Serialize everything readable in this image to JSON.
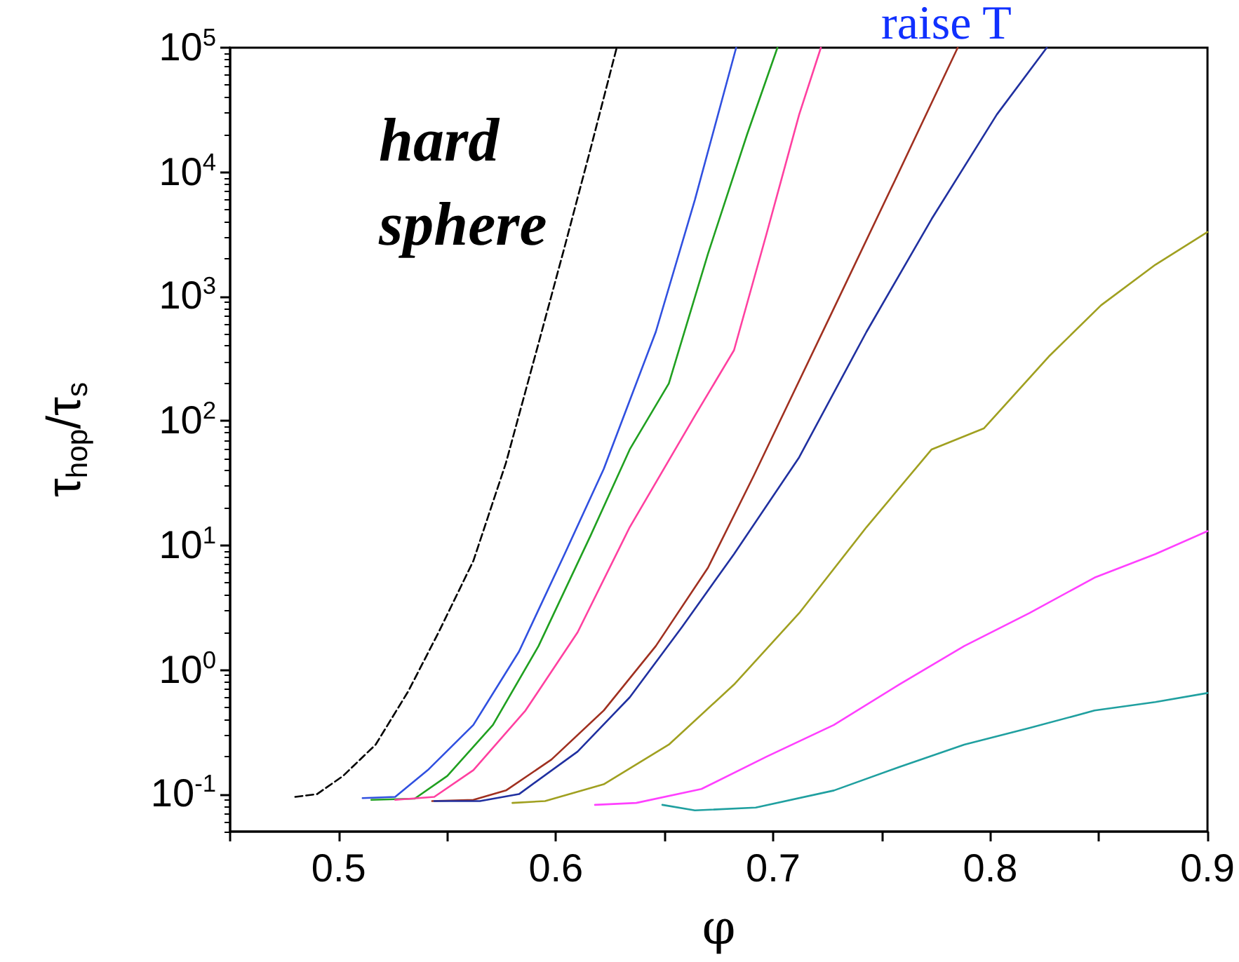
{
  "chart_data": {
    "type": "line",
    "xlabel": "φ",
    "ylabel": "τ$_{hop}$/τ$_{s}$",
    "log": "y",
    "marker": "none",
    "annotations": [
      "hard sphere",
      "raise T"
    ],
    "xlim": [
      0.45,
      0.9
    ],
    "xticks": [
      {
        "value": 0.45,
        "label": null
      },
      0.5,
      {
        "value": 0.55,
        "label": null
      },
      0.6,
      {
        "value": 0.65,
        "label": null
      },
      0.7,
      {
        "value": 0.75,
        "label": null
      },
      0.8,
      {
        "value": 0.85,
        "label": null
      },
      0.9
    ],
    "ylim": [
      0.05,
      100000
    ],
    "yticks": [
      {
        "value": 0.1,
        "label": "10$^{-1}$"
      },
      {
        "value": 1,
        "label": "10$^{0}$"
      },
      {
        "value": 10,
        "label": "10$^{1}$"
      },
      {
        "value": 100,
        "label": "10$^{2}$"
      },
      {
        "value": 1000,
        "label": "10$^{3}$"
      },
      {
        "value": 10000,
        "label": "10$^{4}$"
      },
      {
        "value": 100000,
        "label": "10$^{5}$"
      }
    ],
    "series": [
      {
        "color": "#000000",
        "line_style": "dashed",
        "x": [
          0.48,
          0.49,
          0.502,
          0.517,
          0.532,
          0.546,
          0.562,
          0.577,
          0.592,
          0.604,
          0.616,
          0.628
        ],
        "values": [
          0.095,
          0.1,
          0.14,
          0.25,
          0.67,
          2.0,
          7.5,
          46,
          420,
          2500,
          15500,
          100000
        ]
      },
      {
        "color": "#3050e0",
        "x": [
          0.511,
          0.526,
          0.541,
          0.562,
          0.583,
          0.604,
          0.622,
          0.646,
          0.664,
          0.683
        ],
        "values": [
          0.093,
          0.095,
          0.156,
          0.36,
          1.4,
          8.5,
          41,
          520,
          6000,
          100000
        ]
      },
      {
        "color": "#20a020",
        "x": [
          0.515,
          0.535,
          0.55,
          0.571,
          0.592,
          0.616,
          0.634,
          0.652,
          0.67,
          0.688,
          0.702
        ],
        "values": [
          0.09,
          0.092,
          0.14,
          0.36,
          1.55,
          12,
          59,
          200,
          2200,
          20000,
          100000
        ]
      },
      {
        "color": "#ff40a0",
        "x": [
          0.526,
          0.544,
          0.562,
          0.586,
          0.61,
          0.634,
          0.664,
          0.682,
          0.697,
          0.712,
          0.722
        ],
        "values": [
          0.09,
          0.095,
          0.156,
          0.47,
          2.0,
          14,
          110,
          370,
          3200,
          29000,
          100000
        ]
      },
      {
        "color": "#a03020",
        "x": [
          0.543,
          0.562,
          0.577,
          0.598,
          0.622,
          0.646,
          0.67,
          0.691,
          0.726,
          0.756,
          0.785
        ],
        "values": [
          0.088,
          0.09,
          0.107,
          0.19,
          0.47,
          1.55,
          6.6,
          36,
          680,
          8500,
          100000
        ]
      },
      {
        "color": "#2030a0",
        "x": [
          0.544,
          0.565,
          0.583,
          0.61,
          0.634,
          0.658,
          0.682,
          0.712,
          0.743,
          0.773,
          0.803,
          0.826
        ],
        "values": [
          0.088,
          0.088,
          0.1,
          0.22,
          0.6,
          2.2,
          8.5,
          51,
          520,
          4200,
          29000,
          100000
        ]
      },
      {
        "color": "#a0a020",
        "x": [
          0.58,
          0.595,
          0.622,
          0.652,
          0.682,
          0.712,
          0.743,
          0.773,
          0.797,
          0.827,
          0.851,
          0.876,
          0.9
        ],
        "values": [
          0.085,
          0.088,
          0.12,
          0.25,
          0.76,
          2.85,
          14,
          59,
          87,
          330,
          850,
          1800,
          3300
        ]
      },
      {
        "color": "#ff40ff",
        "x": [
          0.618,
          0.637,
          0.667,
          0.697,
          0.728,
          0.758,
          0.788,
          0.818,
          0.848,
          0.876,
          0.9
        ],
        "values": [
          0.082,
          0.085,
          0.11,
          0.2,
          0.36,
          0.76,
          1.55,
          2.85,
          5.5,
          8.5,
          13
        ]
      },
      {
        "color": "#20a0a0",
        "x": [
          0.649,
          0.664,
          0.692,
          0.728,
          0.758,
          0.788,
          0.818,
          0.848,
          0.876,
          0.9
        ],
        "values": [
          0.082,
          0.074,
          0.078,
          0.107,
          0.165,
          0.25,
          0.34,
          0.47,
          0.55,
          0.65
        ]
      }
    ]
  }
}
